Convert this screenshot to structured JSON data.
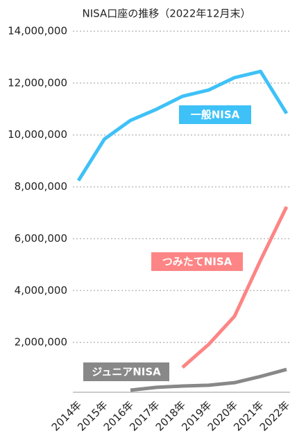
{
  "chart_data": {
    "type": "line",
    "title": "NISA口座の推移（2022年12月末）",
    "categories": [
      "2014年",
      "2015年",
      "2016年",
      "2017年",
      "2018年",
      "2019年",
      "2020年",
      "2021年",
      "2022年"
    ],
    "series": [
      {
        "name": "一般NISA",
        "color": "#3ec1f7",
        "values": [
          8240000,
          9840000,
          10560000,
          10990000,
          11490000,
          11730000,
          12210000,
          12450000,
          10830000
        ]
      },
      {
        "name": "つみたてNISA",
        "color": "#fd8585",
        "values": [
          null,
          null,
          null,
          null,
          1040000,
          1920000,
          3010000,
          5170000,
          7230000
        ]
      },
      {
        "name": "ジュニアNISA",
        "color": "#888888",
        "values": [
          null,
          null,
          160000,
          270000,
          320000,
          350000,
          450000,
          690000,
          960000
        ]
      }
    ],
    "ylim": [
      0,
      14000000
    ],
    "yticks": [
      {
        "value": 2000000,
        "label": "2,000,000"
      },
      {
        "value": 4000000,
        "label": "4,000,000"
      },
      {
        "value": 6000000,
        "label": "6,000,000"
      },
      {
        "value": 8000000,
        "label": "8,000,000"
      },
      {
        "value": 10000000,
        "label": "10,000,000"
      },
      {
        "value": 12000000,
        "label": "12,000,000"
      },
      {
        "value": 14000000,
        "label": "14,000,000"
      }
    ],
    "grid": true
  }
}
